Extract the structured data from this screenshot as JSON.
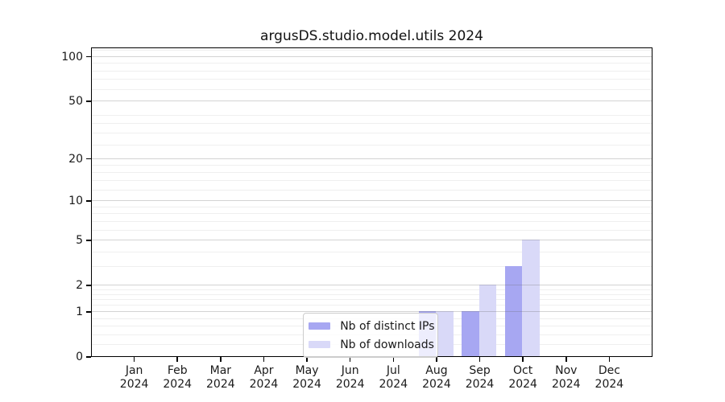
{
  "title": "argusDS.studio.model.utils 2024",
  "chart_data": {
    "type": "bar",
    "title": "argusDS.studio.model.utils 2024",
    "categories": [
      "Jan 2024",
      "Feb 2024",
      "Mar 2024",
      "Apr 2024",
      "May 2024",
      "Jun 2024",
      "Jul 2024",
      "Aug 2024",
      "Sep 2024",
      "Oct 2024",
      "Nov 2024",
      "Dec 2024"
    ],
    "series": [
      {
        "name": "Nb of distinct IPs",
        "color": "#a7a7f2",
        "values": [
          0,
          0,
          0,
          0,
          0,
          0,
          0,
          1,
          1,
          3,
          0,
          0
        ]
      },
      {
        "name": "Nb of downloads",
        "color": "#d9d9f8",
        "values": [
          0,
          0,
          0,
          0,
          0,
          0,
          0,
          1,
          2,
          5,
          0,
          0
        ]
      }
    ],
    "xlabel": "",
    "ylabel": "",
    "yscale": "log1p",
    "yticks": [
      0,
      1,
      2,
      5,
      10,
      20,
      50,
      100
    ],
    "ylim": [
      0,
      115
    ],
    "grid": "major and faint minor horizontal gridlines",
    "legend_position": "lower center inside plot"
  },
  "legend": {
    "items": [
      {
        "label": "Nb of distinct IPs",
        "color": "#a7a7f2"
      },
      {
        "label": "Nb of downloads",
        "color": "#d9d9f8"
      }
    ]
  }
}
